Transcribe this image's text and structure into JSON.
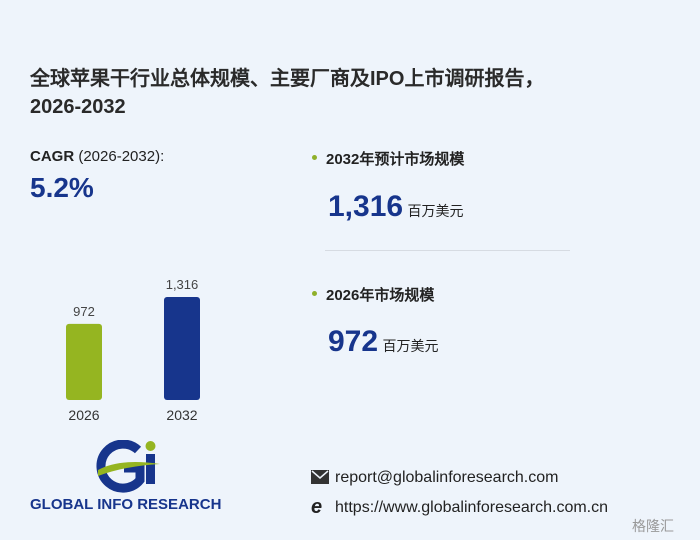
{
  "header": {
    "title_line1": "全球苹果干行业总体规模、主要厂商及IPO上市调研报告，",
    "title_line2": "2026-2032"
  },
  "cagr": {
    "label": "CAGR",
    "period": "(2026-2032):",
    "value": "5.2%"
  },
  "stats": [
    {
      "label": "2032年预计市场规模",
      "unit": "百万美元"
    },
    {
      "label": "2026年市场规模",
      "unit": "百万美元"
    }
  ],
  "chart_data": {
    "type": "bar",
    "categories": [
      "2026",
      "2032"
    ],
    "values": [
      972,
      1316
    ],
    "value_labels": [
      "972",
      "1,316"
    ],
    "colors": [
      "#95b521",
      "#17358c"
    ]
  },
  "logo": {
    "text": "GLOBAL INFO RESEARCH"
  },
  "contact": {
    "email": "report@globalinforesearch.com",
    "website": "https://www.globalinforesearch.com.cn"
  },
  "watermark": "格隆汇"
}
